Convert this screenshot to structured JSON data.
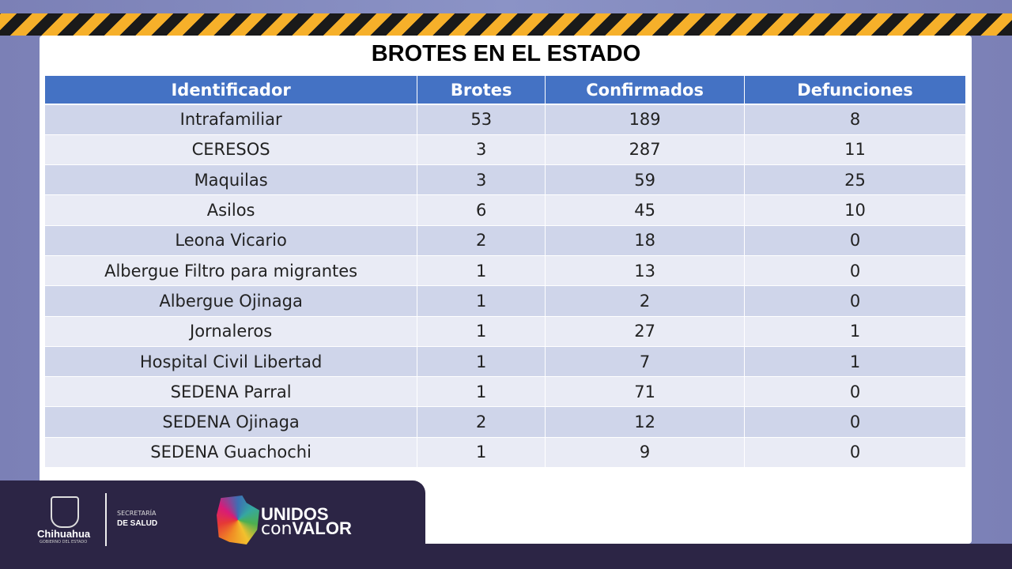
{
  "title": "BROTES EN EL ESTADO",
  "columns": [
    "Identificador",
    "Brotes",
    "Confirmados",
    "Defunciones"
  ],
  "rows": [
    [
      "Intrafamiliar",
      "53",
      "189",
      "8"
    ],
    [
      "CERESOS",
      "3",
      "287",
      "11"
    ],
    [
      "Maquilas",
      "3",
      "59",
      "25"
    ],
    [
      "Asilos",
      "6",
      "45",
      "10"
    ],
    [
      "Leona Vicario",
      "2",
      "18",
      "0"
    ],
    [
      "Albergue Filtro para migrantes",
      "1",
      "13",
      "0"
    ],
    [
      "Albergue Ojinaga",
      "1",
      "2",
      "0"
    ],
    [
      "Jornaleros",
      "1",
      "27",
      "1"
    ],
    [
      "Hospital Civil Libertad",
      "1",
      "7",
      "1"
    ],
    [
      "SEDENA Parral",
      "1",
      "71",
      "0"
    ],
    [
      "SEDENA Ojinaga",
      "2",
      "12",
      "0"
    ],
    [
      "SEDENA Guachochi",
      "1",
      "9",
      "0"
    ]
  ],
  "footer": {
    "state": "Chihuahua",
    "gov": "GOBIERNO DEL ESTADO",
    "sec1": "SECRETARÍA",
    "sec2": "DE SALUD",
    "unidos": "UNIDOS",
    "con": "con",
    "valor": "VALOR"
  }
}
